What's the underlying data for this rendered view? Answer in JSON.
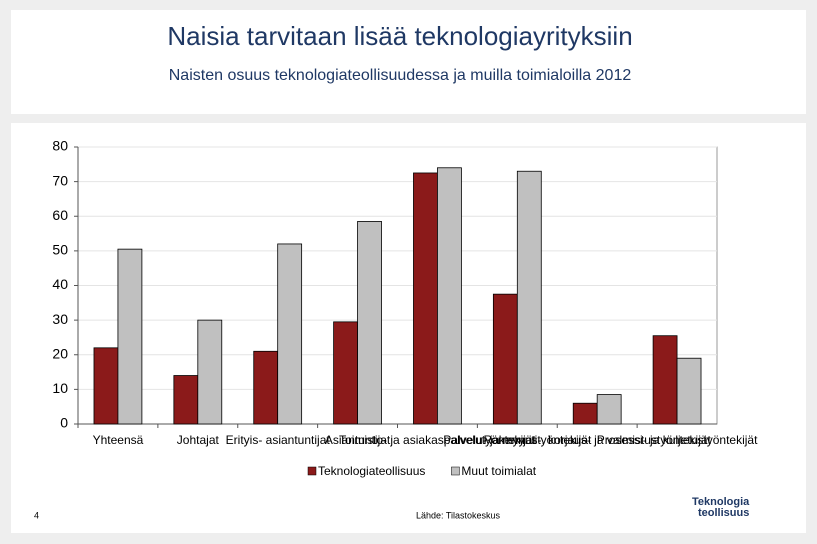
{
  "chart_data": {
    "type": "bar",
    "title": "Naisia tarvitaan lisää teknologiayrityksiin",
    "subtitle": "Naisten osuus teknologiateollisuudessa ja muilla toimialoilla 2012",
    "categories": [
      "Yhteensä",
      "Johtajat",
      "Erityis- asiantuntijat",
      "Asiantuntijat",
      "Toimisto- ja asiakaspalvelutyöntekijät",
      "Palvelu- ja myyntityöntekijät",
      "Rakennus-, korjaus- ja valmistustyöntekijät",
      "Prosessi- ja kuljetustyöntekijät"
    ],
    "series": [
      {
        "name": "Teknologiateollisuus",
        "color": "#8b1a1a",
        "values": [
          22,
          14,
          21,
          29.5,
          72.5,
          37.5,
          6,
          25.5
        ]
      },
      {
        "name": "Muut toimialat",
        "color": "#c0c0c0",
        "values": [
          50.5,
          30,
          52,
          58.5,
          74,
          73,
          8.5,
          19
        ]
      }
    ],
    "ylim": [
      0,
      80
    ],
    "yticks": [
      0,
      10,
      20,
      30,
      40,
      50,
      60,
      70,
      80
    ],
    "grid": true,
    "legend": "bottom",
    "page_number": "4",
    "source": "Lähde: Tilastokeskus",
    "logo": [
      "Teknologia",
      "teollisuus"
    ]
  }
}
